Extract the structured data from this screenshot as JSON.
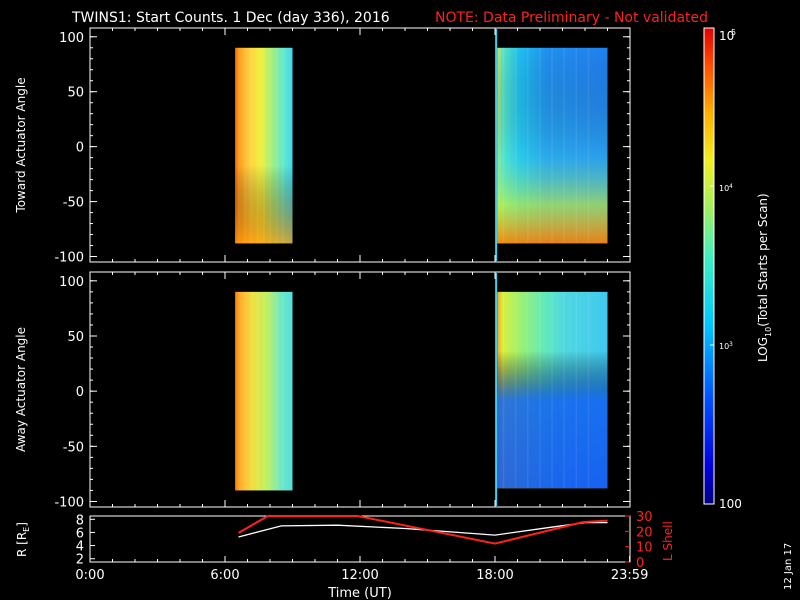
{
  "header": {
    "title": "TWINS1: Start Counts.  1 Dec (day 336), 2016",
    "note": "NOTE: Data Preliminary - Not validated",
    "note_color": "#ff2020"
  },
  "side_date": "12 Jan 17",
  "chart_data": [
    {
      "type": "heatmap",
      "id": "toward",
      "ylabel": "Toward Actuator Angle",
      "xlim": [
        0,
        24
      ],
      "ylim": [
        -105,
        108
      ],
      "yticks": [
        100,
        50,
        0,
        -50,
        -100
      ],
      "ytick_labels": [
        "100",
        "50",
        "0",
        "-50",
        "-100"
      ],
      "data_blocks": [
        {
          "x_start": 6.45,
          "x_end": 9.0,
          "y_start": -88,
          "y_end": 90,
          "pattern": "orange-yellow gradient, cyan toward late times"
        },
        {
          "x_start": 18.1,
          "x_end": 23.0,
          "y_start": -88,
          "y_end": 90,
          "pattern": "cyan-blue body, yellow-red near bottom at late times"
        }
      ],
      "marker_line_x": 18.05
    },
    {
      "type": "heatmap",
      "id": "away",
      "ylabel": "Away Actuator Angle",
      "xlim": [
        0,
        24
      ],
      "ylim": [
        -105,
        108
      ],
      "yticks": [
        100,
        50,
        0,
        -50,
        -100
      ],
      "ytick_labels": [
        "100",
        "50",
        "0",
        "-50",
        "-100"
      ],
      "data_blocks": [
        {
          "x_start": 6.45,
          "x_end": 9.0,
          "y_start": -90,
          "y_end": 90,
          "pattern": "orange-yellow, cyan toward late times"
        },
        {
          "x_start": 18.1,
          "x_end": 23.0,
          "y_start": -88,
          "y_end": 90,
          "pattern": "yellow-green early, blue at low angles late"
        }
      ],
      "marker_line_x": 18.05
    },
    {
      "type": "line",
      "id": "orbit",
      "ylabel_left": "R [R",
      "ylabel_left_sub": "E",
      "ylabel_left_close": "]",
      "ylabel_right": "L Shell",
      "ylim_left": [
        1.5,
        8.5
      ],
      "ylim_right": [
        0,
        30
      ],
      "yticks_left": [
        "8",
        "6",
        "4",
        "2"
      ],
      "yticks_right": [
        "30",
        "20",
        "10",
        "0"
      ],
      "series": [
        {
          "axis": "left",
          "color": "#ffffff",
          "x": [
            6.6,
            8.5,
            11.0,
            14.0,
            18.0,
            20.5,
            22.0,
            23.0
          ],
          "y": [
            5.3,
            7.0,
            7.1,
            6.6,
            5.6,
            6.8,
            7.5,
            7.5
          ]
        },
        {
          "axis": "right",
          "color": "#ff2020",
          "x": [
            6.6,
            7.9,
            11.9,
            18.0,
            21.9,
            23.0
          ],
          "y": [
            19,
            30,
            30,
            12,
            26,
            27
          ]
        }
      ],
      "xticks": [
        0,
        6,
        12,
        18,
        23.983
      ],
      "xtick_labels": [
        "0:00",
        "6:00",
        "12:00",
        "18:00",
        "23:59"
      ],
      "xlabel": "Time (UT)"
    }
  ],
  "colorbar": {
    "label": "LOG",
    "label_sub": "10",
    "label_rest": "(Total Starts per Scan)",
    "ticks": [
      "10",
      "10",
      "10",
      "100"
    ],
    "tick_sups": [
      "5",
      "4",
      "3",
      ""
    ],
    "min_label": "100",
    "max_label": "10"
  }
}
